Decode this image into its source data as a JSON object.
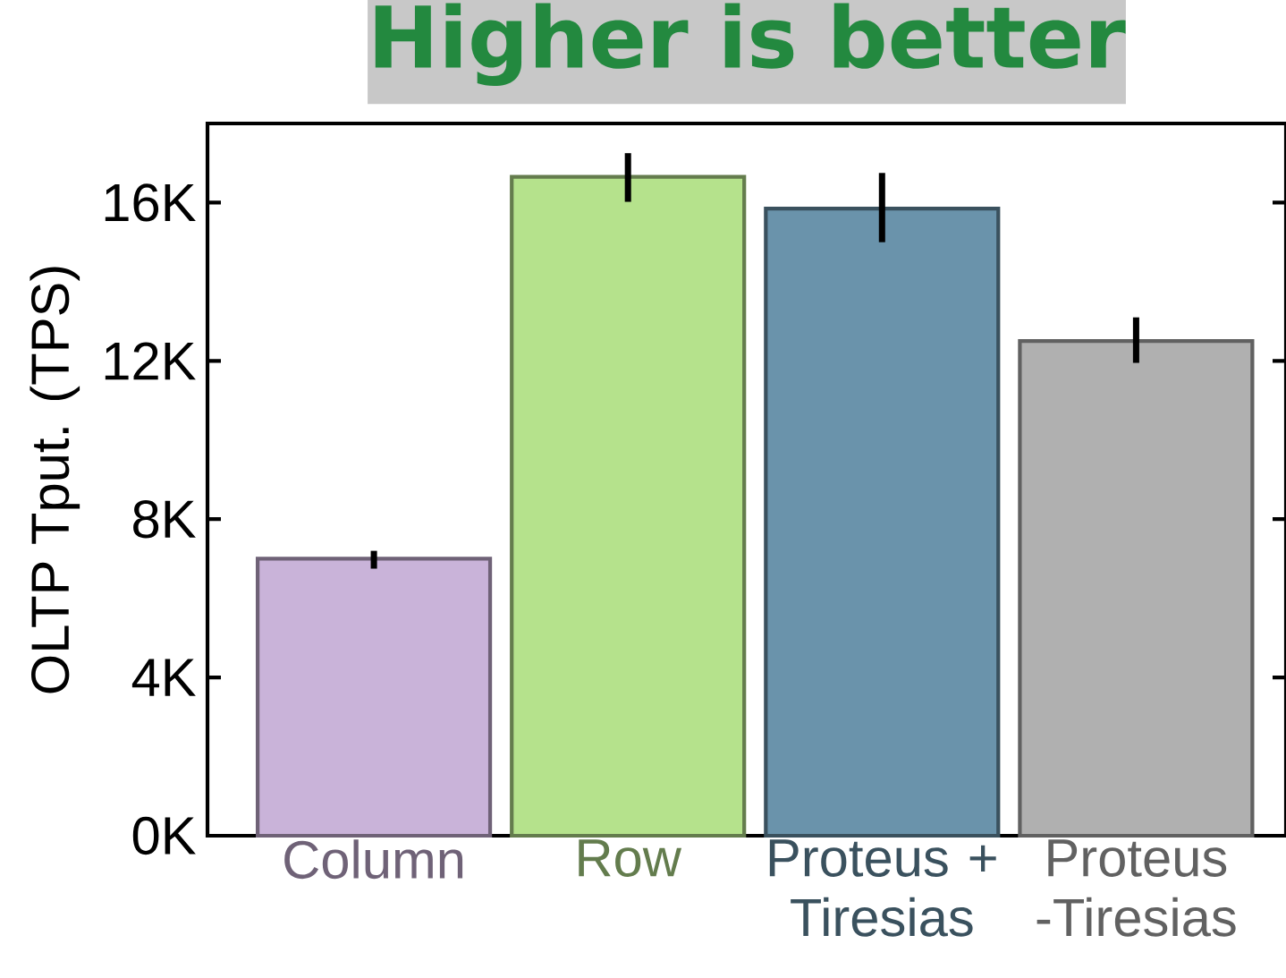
{
  "chart_data": {
    "type": "bar",
    "title": "Higher is better",
    "ylabel": "OLTP Tput. (TPS)",
    "categories": [
      "Column",
      "Row",
      "Proteus + Tiresias",
      "Proteus -Tiresias"
    ],
    "values": [
      7000,
      16650,
      15850,
      12500
    ],
    "colors": [
      "#c9b3d9",
      "#b5e28c",
      "#6a93ab",
      "#b0b0b0"
    ],
    "errors": [
      [
        6750,
        7200
      ],
      [
        16020,
        17250
      ],
      [
        15000,
        16750
      ],
      [
        11950,
        13100
      ]
    ],
    "ylim": [
      0,
      18000
    ],
    "yticks": [
      {
        "value": 0,
        "label": "0K"
      },
      {
        "value": 4000,
        "label": "4K"
      },
      {
        "value": 8000,
        "label": "8K"
      },
      {
        "value": 12000,
        "label": "12K"
      },
      {
        "value": 16000,
        "label": "16K"
      }
    ],
    "grid": false
  }
}
